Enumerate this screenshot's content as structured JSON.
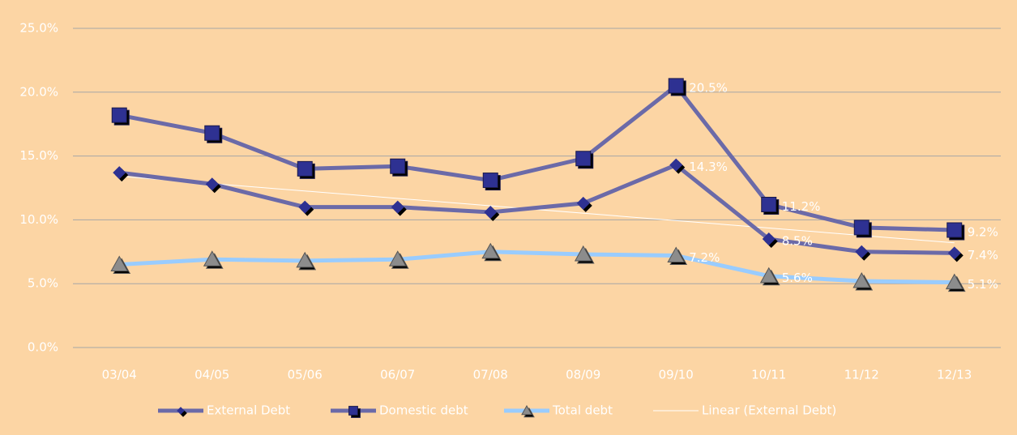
{
  "chart_data": {
    "type": "line",
    "categories": [
      "03/04",
      "04/05",
      "05/06",
      "06/07",
      "07/08",
      "08/09",
      "09/10",
      "10/11",
      "11/12",
      "12/13"
    ],
    "series": [
      {
        "name": "External Debt",
        "color": "#6b6aa8",
        "marker": "diamond",
        "marker_color": "#2e3192",
        "values": [
          13.7,
          12.8,
          11.0,
          11.0,
          10.6,
          11.3,
          14.3,
          8.5,
          7.5,
          7.4
        ],
        "value_labels": [
          null,
          null,
          null,
          null,
          null,
          null,
          "14.3%",
          "8.5%",
          null,
          "7.4%"
        ]
      },
      {
        "name": "Domestic debt",
        "color": "#6b6aa8",
        "marker": "square",
        "marker_color": "#2e3192",
        "values": [
          18.2,
          16.8,
          14.0,
          14.2,
          13.1,
          14.8,
          20.5,
          11.2,
          9.4,
          9.2
        ],
        "value_labels": [
          null,
          null,
          null,
          null,
          null,
          null,
          "20.5%",
          "11.2%",
          null,
          "9.2%"
        ]
      },
      {
        "name": "Total debt",
        "color": "#99ccff",
        "marker": "triangle",
        "marker_color": "#8c8c8c",
        "values": [
          6.5,
          6.9,
          6.8,
          6.9,
          7.5,
          7.3,
          7.2,
          5.6,
          5.2,
          5.1
        ],
        "value_labels": [
          null,
          null,
          null,
          null,
          null,
          null,
          "7.2%",
          "5.6%",
          null,
          "5.1%"
        ]
      },
      {
        "name": "Linear (External Debt)",
        "color": "#ffffff",
        "trendline": "linear"
      }
    ],
    "ylim": [
      0,
      25
    ],
    "yticks": [
      {
        "value": 0,
        "label": "0.0%"
      },
      {
        "value": 5,
        "label": "5.0%"
      },
      {
        "value": 10,
        "label": "10.0%"
      },
      {
        "value": 15,
        "label": "15.0%"
      },
      {
        "value": 20,
        "label": "20.0%"
      },
      {
        "value": 25,
        "label": "25.0%"
      }
    ],
    "grid": true,
    "legend": "bottom"
  }
}
